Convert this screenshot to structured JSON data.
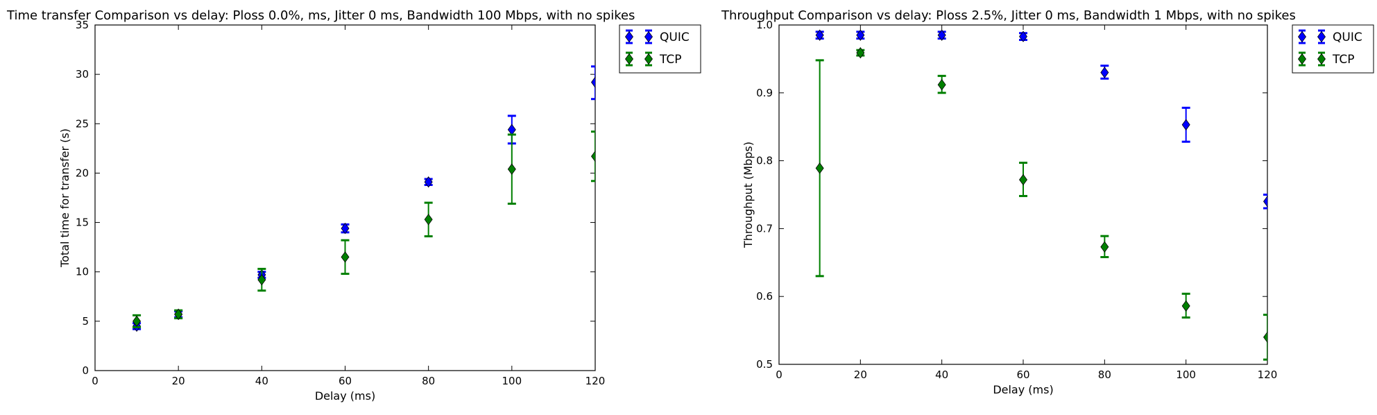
{
  "chart_data": [
    {
      "type": "scatter",
      "title": "Time transfer Comparison vs delay: Ploss 0.0%, ms, Jitter 0 ms, Bandwidth 100 Mbps, with no spikes",
      "xlabel": "Delay (ms)",
      "ylabel": "Total time for transfer (s)",
      "xlim": [
        0,
        120
      ],
      "ylim": [
        0,
        35
      ],
      "xticks": [
        0,
        20,
        40,
        60,
        80,
        100,
        120
      ],
      "yticks": [
        0,
        5,
        10,
        15,
        20,
        25,
        30,
        35
      ],
      "xtick_labels": [
        "0",
        "20",
        "40",
        "60",
        "80",
        "100",
        "120"
      ],
      "ytick_labels": [
        "0",
        "5",
        "10",
        "15",
        "20",
        "25",
        "30",
        "35"
      ],
      "grid": false,
      "legend_position": "outside-top-right",
      "series": [
        {
          "name": "QUIC",
          "color": "#0000ff",
          "marker": "diamond",
          "x": [
            10,
            20,
            40,
            60,
            80,
            100,
            120
          ],
          "y": [
            4.5,
            5.7,
            9.7,
            14.4,
            19.1,
            24.4,
            29.2
          ],
          "yerr_low": [
            4.2,
            5.4,
            9.4,
            14.0,
            18.8,
            23.0,
            27.5
          ],
          "yerr_high": [
            4.8,
            6.0,
            10.0,
            14.8,
            19.4,
            25.8,
            30.8
          ]
        },
        {
          "name": "TCP",
          "color": "#007f00",
          "marker": "diamond",
          "x": [
            10,
            20,
            40,
            60,
            80,
            100,
            120
          ],
          "y": [
            5.0,
            5.7,
            9.2,
            11.5,
            15.3,
            20.4,
            21.7
          ],
          "yerr_low": [
            4.4,
            5.3,
            8.1,
            9.8,
            13.6,
            16.9,
            19.2
          ],
          "yerr_high": [
            5.6,
            6.1,
            10.3,
            13.2,
            17.0,
            23.9,
            24.2
          ]
        }
      ]
    },
    {
      "type": "scatter",
      "title": "Throughput Comparison vs delay: Ploss 2.5%, Jitter 0 ms, Bandwidth 1 Mbps, with no spikes",
      "xlabel": "Delay (ms)",
      "ylabel": "Throughput (Mbps)",
      "xlim": [
        0,
        120
      ],
      "ylim": [
        0.5,
        1.0
      ],
      "xticks": [
        0,
        20,
        40,
        60,
        80,
        100,
        120
      ],
      "yticks": [
        0.5,
        0.6,
        0.7,
        0.8,
        0.9,
        1.0
      ],
      "xtick_labels": [
        "0",
        "20",
        "40",
        "60",
        "80",
        "100",
        "120"
      ],
      "ytick_labels": [
        "0.5",
        "0.6",
        "0.7",
        "0.8",
        "0.9",
        "1.0"
      ],
      "grid": false,
      "legend_position": "outside-top-right",
      "series": [
        {
          "name": "QUIC",
          "color": "#0000ff",
          "marker": "diamond",
          "x": [
            10,
            20,
            40,
            60,
            80,
            100,
            120
          ],
          "y": [
            0.985,
            0.985,
            0.985,
            0.983,
            0.93,
            0.853,
            0.74
          ],
          "yerr_low": [
            0.98,
            0.98,
            0.98,
            0.978,
            0.921,
            0.828,
            0.73
          ],
          "yerr_high": [
            0.99,
            0.99,
            0.99,
            0.988,
            0.94,
            0.878,
            0.75
          ]
        },
        {
          "name": "TCP",
          "color": "#007f00",
          "marker": "diamond",
          "x": [
            10,
            20,
            40,
            60,
            80,
            100,
            120
          ],
          "y": [
            0.789,
            0.959,
            0.912,
            0.772,
            0.673,
            0.586,
            0.54
          ],
          "yerr_low": [
            0.63,
            0.955,
            0.9,
            0.748,
            0.658,
            0.569,
            0.507
          ],
          "yerr_high": [
            0.948,
            0.963,
            0.925,
            0.797,
            0.689,
            0.604,
            0.573
          ]
        }
      ]
    }
  ]
}
